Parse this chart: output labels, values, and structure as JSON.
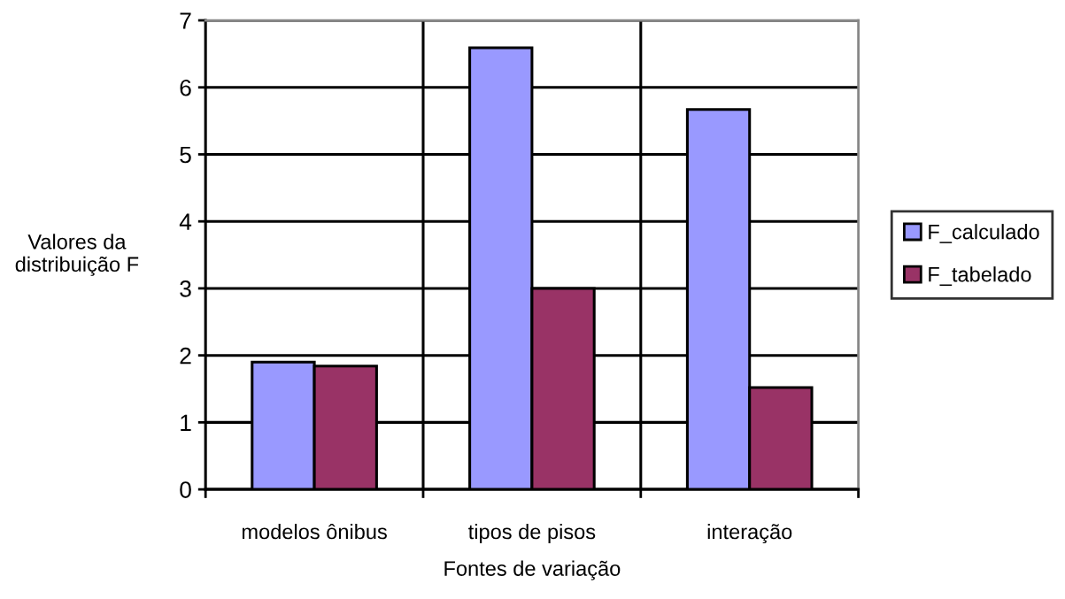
{
  "chart_data": {
    "type": "bar",
    "xlabel": "Fontes de variação",
    "ylabel": "Valores da\ndistribuição F",
    "categories": [
      "modelos ônibus",
      "tipos de pisos",
      "interação"
    ],
    "series": [
      {
        "name": "F_calculado",
        "color": "#9999ff",
        "values": [
          1.9,
          6.59,
          5.67
        ]
      },
      {
        "name": "F_tabelado",
        "color": "#993366",
        "values": [
          1.84,
          3.0,
          1.52
        ]
      }
    ],
    "ylim": [
      0,
      7
    ],
    "yticks": [
      0,
      1,
      2,
      3,
      4,
      5,
      6,
      7
    ],
    "grid": true,
    "legend": "right"
  }
}
